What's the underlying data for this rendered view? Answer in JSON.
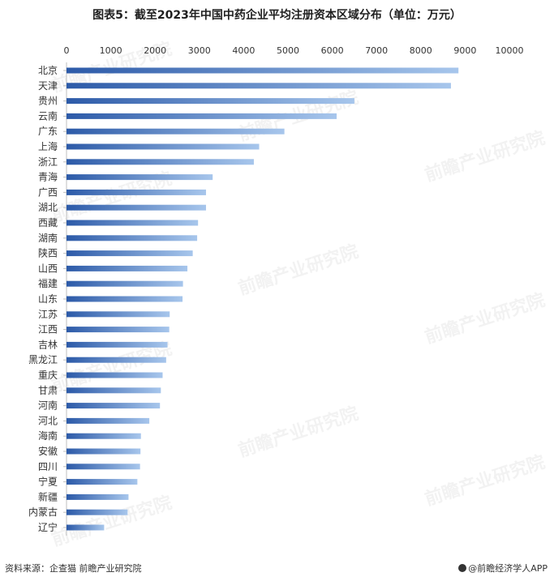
{
  "header": {
    "title": "图表5：截至2023年中国中药企业平均注册资本区域分布（单位：万元）"
  },
  "footer": {
    "source": "资料来源：企查猫 前瞻产业研究院",
    "brand": "@前瞻经济学人APP"
  },
  "watermark": {
    "text": "前瞻产业研究院"
  },
  "colors": {
    "bar_dark": "#2c5aa8",
    "bar_light": "#a7c6ec",
    "axis": "#bfbfbf"
  },
  "chart_data": {
    "type": "bar",
    "orientation": "horizontal",
    "title": "图表5：截至2023年中国中药企业平均注册资本区域分布（单位：万元）",
    "xlim": [
      0,
      10000
    ],
    "xticks": [
      0,
      1000,
      2000,
      3000,
      4000,
      5000,
      6000,
      7000,
      8000,
      9000,
      10000
    ],
    "x_axis_position": "top",
    "grid": false,
    "categories": [
      "北京",
      "天津",
      "贵州",
      "云南",
      "广东",
      "上海",
      "浙江",
      "青海",
      "广西",
      "湖北",
      "西藏",
      "湖南",
      "陕西",
      "山西",
      "福建",
      "山东",
      "江苏",
      "江西",
      "吉林",
      "黑龙江",
      "重庆",
      "甘肃",
      "河南",
      "河北",
      "海南",
      "安徽",
      "四川",
      "宁夏",
      "新疆",
      "内蒙古",
      "辽宁"
    ],
    "values": [
      8850,
      8680,
      6500,
      6100,
      4920,
      4350,
      4230,
      3300,
      3150,
      3150,
      2970,
      2950,
      2850,
      2730,
      2630,
      2620,
      2330,
      2320,
      2280,
      2250,
      2170,
      2130,
      2110,
      1870,
      1680,
      1670,
      1660,
      1600,
      1400,
      1380,
      850
    ]
  }
}
